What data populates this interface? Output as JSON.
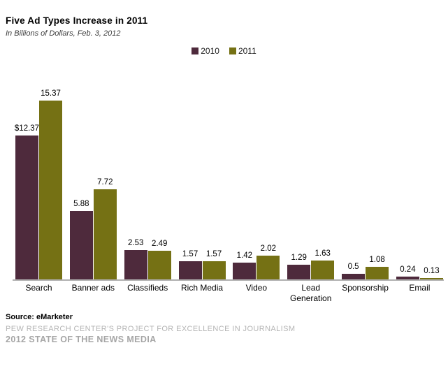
{
  "header": {
    "title": "Five Ad Types Increase in 2011",
    "subtitle": "In Billions of Dollars, Feb. 3, 2012"
  },
  "legend": [
    {
      "label": "2010",
      "color": "#4e2a3c"
    },
    {
      "label": "2011",
      "color": "#757114"
    }
  ],
  "chart_data": {
    "type": "bar",
    "title": "Five Ad Types Increase in 2011",
    "subtitle": "In Billions of Dollars, Feb. 3, 2012",
    "unit": "Billions of Dollars",
    "categories": [
      "Search",
      "Banner ads",
      "Classifieds",
      "Rich Media",
      "Video",
      "Lead Generation",
      "Sponsorship",
      "Email"
    ],
    "series": [
      {
        "name": "2010",
        "color": "#4e2a3c",
        "values": [
          12.37,
          5.88,
          2.53,
          1.57,
          1.42,
          1.29,
          0.5,
          0.24
        ],
        "labels": [
          "$12.37",
          "5.88",
          "2.53",
          "1.57",
          "1.42",
          "1.29",
          "0.5",
          "0.24"
        ]
      },
      {
        "name": "2011",
        "color": "#757114",
        "values": [
          15.37,
          7.72,
          2.49,
          1.57,
          2.02,
          1.63,
          1.08,
          0.13
        ],
        "labels": [
          "15.37",
          "7.72",
          "2.49",
          "1.57",
          "2.02",
          "1.63",
          "1.08",
          "0.13"
        ]
      }
    ],
    "ylim": [
      0,
      15.37
    ],
    "grid": false,
    "legend_position": "top-center",
    "baseline_color": "#b0b0b0"
  },
  "footer": {
    "source": "Source: eMarketer",
    "org_line": "PEW RESEARCH CENTER'S PROJECT FOR EXCELLENCE IN JOURNALISM",
    "report_line": "2012 STATE OF THE NEWS MEDIA"
  }
}
